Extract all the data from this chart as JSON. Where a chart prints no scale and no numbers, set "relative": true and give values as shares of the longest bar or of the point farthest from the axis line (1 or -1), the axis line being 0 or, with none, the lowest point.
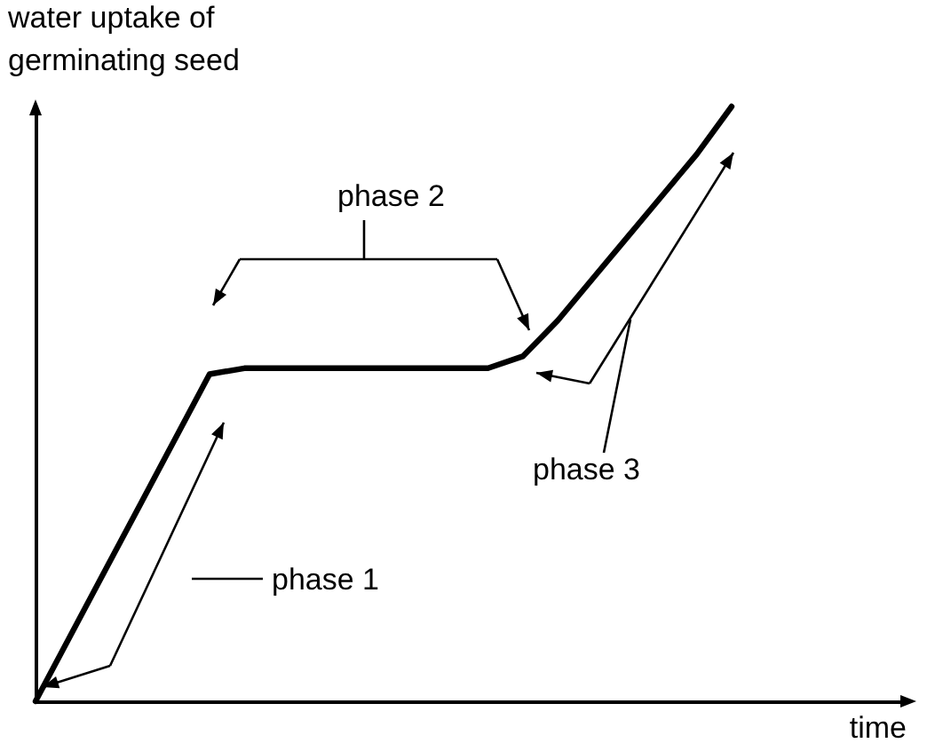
{
  "chart_data": {
    "type": "line",
    "relative": true,
    "xlabel": "time",
    "ylabel": "water uptake of germinating seed",
    "categories": [
      null,
      null,
      null,
      null,
      null,
      null,
      null,
      null,
      null,
      null,
      null,
      null,
      null,
      null,
      null,
      null,
      null,
      null,
      null,
      null,
      null,
      null,
      null,
      null,
      null,
      null
    ],
    "series": [
      {
        "color": "#000000",
        "values": [
          0,
          0.11,
          0.22,
          0.33,
          0.44,
          0.55,
          0.56,
          0.56,
          0.56,
          0.56,
          0.56,
          0.56,
          0.56,
          0.56,
          0.58,
          0.64,
          0.71,
          0.78,
          0.85,
          0.92,
          1,
          null,
          null,
          null,
          null,
          null
        ]
      }
    ],
    "annotations": [
      "phase 1",
      "phase 2",
      "phase 3"
    ]
  }
}
